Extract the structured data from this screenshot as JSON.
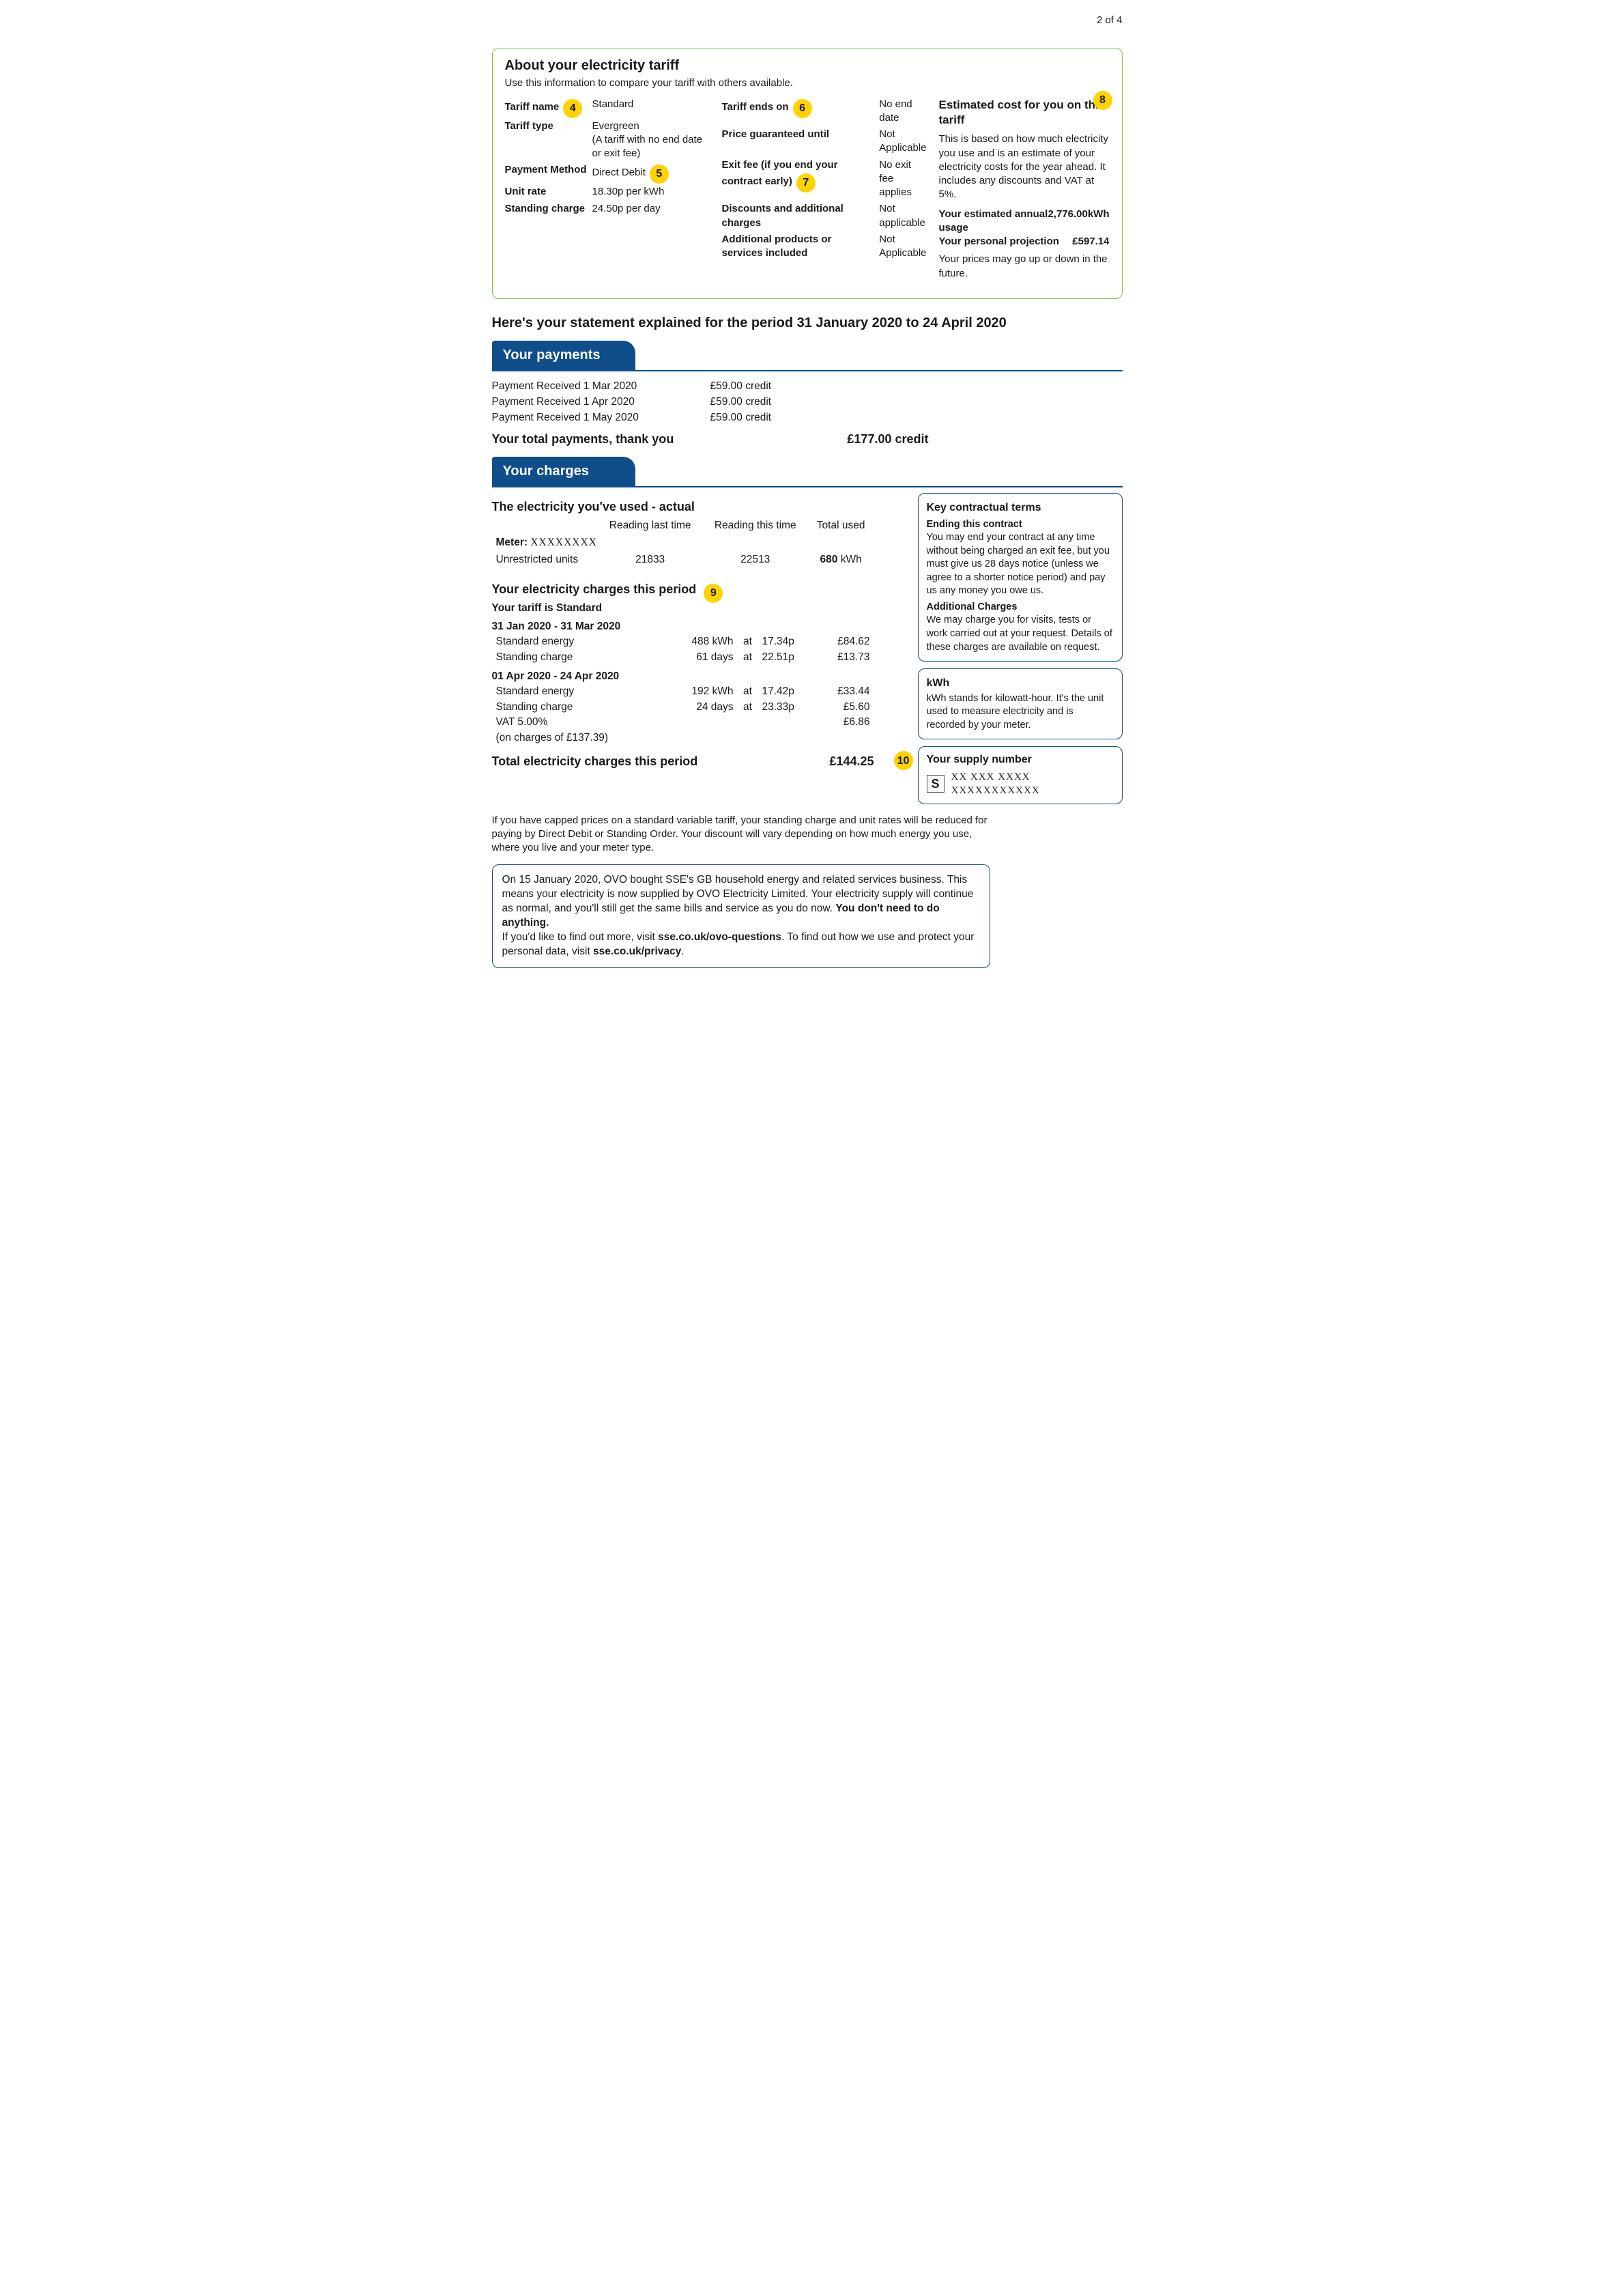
{
  "page_number": "2 of 4",
  "colors": {
    "accent": "#0f4e8a",
    "badge": "#ffd300",
    "box_border": "#7ac142"
  },
  "tariff": {
    "title": "About your electricity tariff",
    "subtitle": "Use this information to compare your tariff with others available.",
    "col1": [
      {
        "label": "Tariff name",
        "value": "Standard",
        "badge": "4"
      },
      {
        "label": "Tariff type",
        "value": "Evergreen\n(A tariff with no end date or exit fee)"
      },
      {
        "label": "Payment Method",
        "value": "Direct Debit",
        "badge_after_value": "5"
      },
      {
        "label": "Unit rate",
        "value": "18.30p per kWh"
      },
      {
        "label": "Standing charge",
        "value": "24.50p per day"
      }
    ],
    "col2": [
      {
        "label": "Tariff ends on",
        "value": "No end date",
        "badge": "6"
      },
      {
        "label": "Price guaranteed until",
        "value": "Not Applicable"
      },
      {
        "label": "Exit fee (if you end your contract early)",
        "value": "No exit fee applies",
        "badge": "7"
      },
      {
        "label": "Discounts and additional charges",
        "value": "Not applicable"
      },
      {
        "label": "Additional products or services included",
        "value": "Not Applicable"
      }
    ],
    "est": {
      "title": "Estimated cost for you on this tariff",
      "badge": "8",
      "body": "This is based on how much electricity you use and is an estimate of your electricity costs for the year ahead. It includes any discounts and VAT at 5%.",
      "rows": [
        {
          "label": "Your estimated annual usage",
          "value": "2,776.00kWh"
        },
        {
          "label": "Your personal projection",
          "value": "£597.14"
        }
      ],
      "foot": "Your prices may go up or down in the future."
    }
  },
  "statement_heading": "Here's your statement explained for the period 31 January 2020 to 24 April 2020",
  "payments": {
    "tab": "Your payments",
    "rows": [
      {
        "label": "Payment Received 1 Mar 2020",
        "value": "£59.00 credit"
      },
      {
        "label": "Payment Received 1 Apr 2020",
        "value": "£59.00 credit"
      },
      {
        "label": "Payment Received 1 May 2020",
        "value": "£59.00 credit"
      }
    ],
    "total_label": "Your total payments, thank you",
    "total_value": "£177.00 credit"
  },
  "charges": {
    "tab": "Your charges",
    "usage_title": "The electricity you've used - actual",
    "col_headers": [
      "Reading last time",
      "Reading this time",
      "Total used"
    ],
    "meter_label": "Meter:",
    "meter_id": "XXXXXXXX",
    "usage_row": {
      "name": "Unrestricted units",
      "last": "21833",
      "this": "22513",
      "total": "680",
      "unit": "kWh"
    },
    "charges_title": "Your electricity charges this period",
    "charges_badge": "9",
    "tariff_line": "Your tariff is Standard",
    "periods": [
      {
        "range": "31 Jan 2020 - 31 Mar 2020",
        "lines": [
          {
            "name": "Standard energy",
            "qty": "488 kWh",
            "rate": "17.34p",
            "amount": "£84.62"
          },
          {
            "name": "Standing charge",
            "qty": "61 days",
            "rate": "22.51p",
            "amount": "£13.73"
          }
        ]
      },
      {
        "range": "01 Apr 2020 - 24 Apr 2020",
        "lines": [
          {
            "name": "Standard energy",
            "qty": "192 kWh",
            "rate": "17.42p",
            "amount": "£33.44"
          },
          {
            "name": "Standing charge",
            "qty": "24 days",
            "rate": "23.33p",
            "amount": "£5.60"
          }
        ]
      }
    ],
    "vat": {
      "label": "VAT 5.00%",
      "note": "(on charges of £137.39)",
      "amount": "£6.86"
    },
    "total_label": "Total electricity charges this period",
    "total_value": "£144.25"
  },
  "side": {
    "terms": {
      "title": "Key contractual terms",
      "sub1": "Ending this contract",
      "body1": "You may end your contract at any time without being charged an exit fee, but you must give us 28 days notice (unless we agree to a shorter notice period) and pay us any money you owe us.",
      "sub2": "Additional Charges",
      "body2": "We may charge you for visits, tests or work carried out at your request. Details of these charges are available on request."
    },
    "kwh": {
      "title": "kWh",
      "body": "kWh stands for kilowatt-hour. It's the unit used to measure electricity and is recorded by your meter."
    },
    "supply": {
      "title": "Your supply number",
      "badge": "10",
      "letter": "S",
      "line1": "XX  XXX  XXXX",
      "line2": "XXXXXXXXXXX"
    }
  },
  "cap_note": "If you have capped prices on a standard variable tariff, your standing charge and unit rates will be reduced for paying by Direct Debit or Standing Order. Your discount will vary depending on how much energy you use, where you live and your meter type.",
  "ovo": {
    "part1": "On 15 January 2020, OVO bought SSE's GB household energy and related services business. This means your electricity is now supplied by OVO Electricity Limited. Your electricity supply will continue as normal, and you'll still get the same bills and service as you do now. ",
    "bold1": "You don't need to do anything.",
    "part2": "If you'd like to find out more, visit ",
    "bold2": "sse.co.uk/ovo-questions",
    "part3": ". To find out how we use and protect your personal data, visit ",
    "bold3": "sse.co.uk/privacy",
    "part4": "."
  }
}
